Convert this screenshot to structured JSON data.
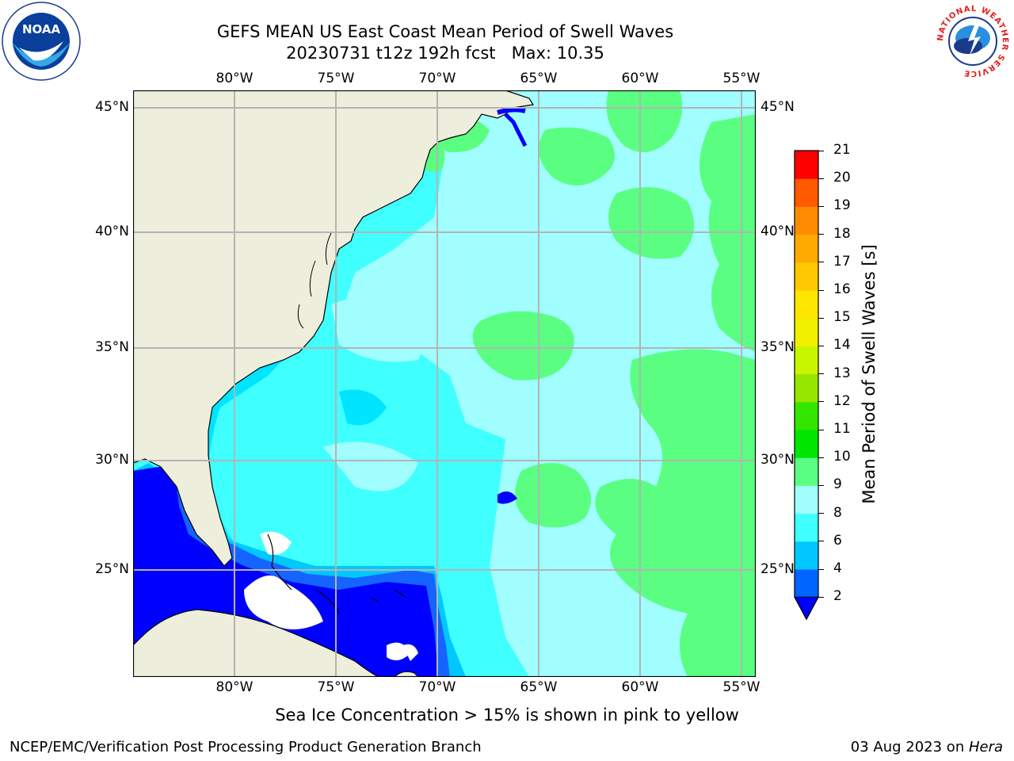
{
  "header": {
    "title": "GEFS MEAN US East Coast Mean Period of Swell Waves",
    "subtitle": "20230731 t12z 192h fcst   Max: 10.35"
  },
  "logos": {
    "left_text": "NOAA",
    "right_text": "NATIONAL WEATHER SERVICE"
  },
  "map": {
    "lon_labels": [
      "80°W",
      "75°W",
      "70°W",
      "65°W",
      "60°W",
      "55°W"
    ],
    "lat_labels": [
      "45°N",
      "40°N",
      "35°N",
      "30°N",
      "25°N"
    ],
    "colors": {
      "land": "#eeeedd",
      "ocean_main": "#40ffff",
      "ocean_light": "#a0fffe",
      "ocean_green": "#5aff82",
      "deep_blue": "#0000ff",
      "mid_blue": "#1664ff",
      "cyan_blue": "#00c8ff",
      "grid": "#b4b4b4"
    }
  },
  "colorbar": {
    "label": "Mean Period of Swell Waves [s]",
    "ticks": [
      "2",
      "4",
      "6",
      "8",
      "9",
      "10",
      "11",
      "12",
      "13",
      "14",
      "15",
      "16",
      "17",
      "18",
      "19",
      "20",
      "21"
    ],
    "colors": [
      "#0064ff",
      "#00c8ff",
      "#40ffff",
      "#a0fffe",
      "#5aff82",
      "#00e600",
      "#32e600",
      "#96e600",
      "#c8f500",
      "#f0f000",
      "#ffe600",
      "#ffc800",
      "#ffaa00",
      "#ff8c00",
      "#ff5a00",
      "#ff2800",
      "#ff0000"
    ],
    "under_color": "#0000ff"
  },
  "caption": "Sea Ice Concentration > 15% is shown in pink to yellow",
  "footer": {
    "left": "NCEP/EMC/Verification Post Processing Product Generation Branch",
    "date": "03 Aug 2023 on ",
    "machine": "Hera"
  }
}
